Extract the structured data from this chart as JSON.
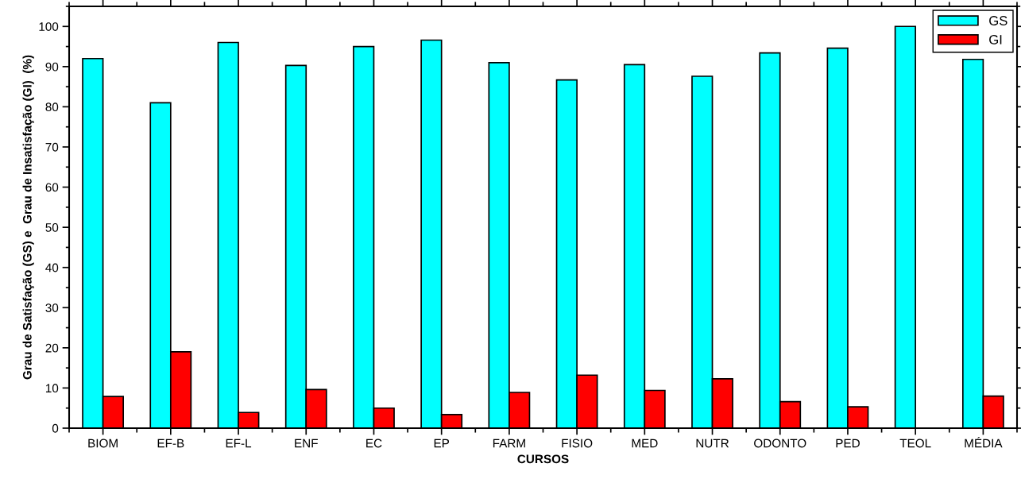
{
  "chart_data": {
    "type": "bar",
    "xlabel": "CURSOS",
    "ylabel": "Grau de Satisfação (GS) e  Grau de Insatisfação (GI)  (%)",
    "categories": [
      "BIOM",
      "EF-B",
      "EF-L",
      "ENF",
      "EC",
      "EP",
      "FARM",
      "FISIO",
      "MED",
      "NUTR",
      "ODONTO",
      "PED",
      "TEOL",
      "MÉDIA"
    ],
    "series": [
      {
        "name": "GS",
        "color": "#00ffff",
        "values": [
          92,
          81,
          96,
          90.3,
          95,
          96.6,
          91,
          86.7,
          90.5,
          87.6,
          93.4,
          94.6,
          100,
          91.8
        ]
      },
      {
        "name": "GI",
        "color": "#ff0000",
        "values": [
          7.9,
          19,
          3.9,
          9.6,
          5,
          3.4,
          8.9,
          13.2,
          9.4,
          12.3,
          6.6,
          5.3,
          null,
          8.0
        ]
      }
    ],
    "ylim": [
      0,
      105
    ],
    "yticks": [
      0,
      10,
      20,
      30,
      40,
      50,
      60,
      70,
      80,
      90,
      100
    ],
    "grid": false,
    "legend": "top right"
  }
}
